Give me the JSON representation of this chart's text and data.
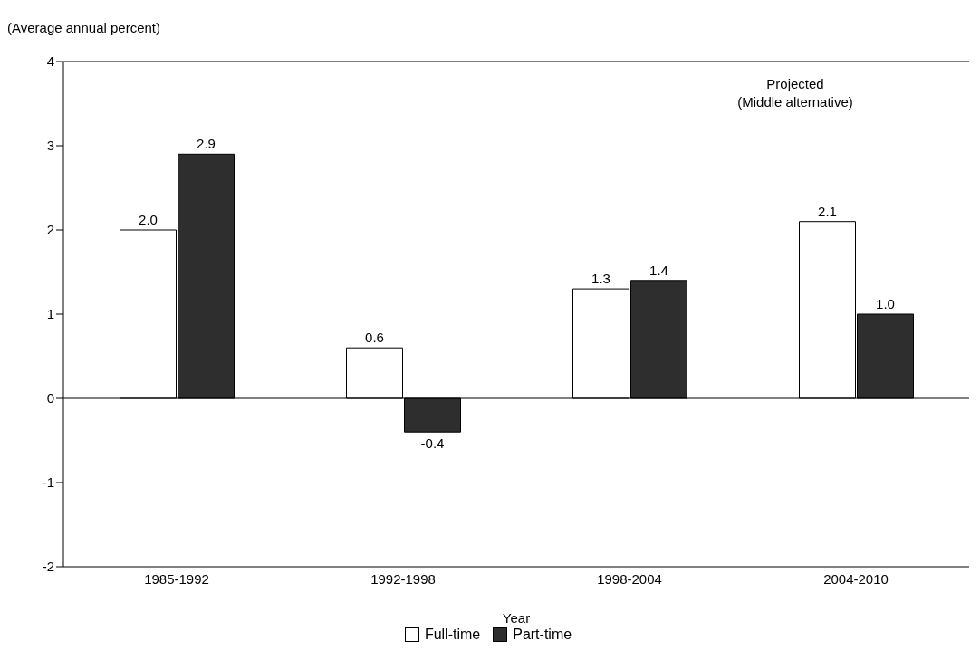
{
  "chart_data": {
    "type": "bar",
    "ylabel": "(Average annual percent)",
    "xlabel": "Year",
    "categories": [
      "1985-1992",
      "1992-1998",
      "1998-2004",
      "2004-2010"
    ],
    "series": [
      {
        "name": "Full-time",
        "color": "#ffffff",
        "values": [
          2.0,
          0.6,
          1.3,
          2.1
        ],
        "value_labels": [
          "2.0",
          "0.6",
          "1.3",
          "2.1"
        ]
      },
      {
        "name": "Part-time",
        "color": "#2e2e2e",
        "values": [
          2.9,
          -0.4,
          1.4,
          1.0
        ],
        "value_labels": [
          "2.9",
          "-0.4",
          "1.4",
          "1.0"
        ]
      }
    ],
    "ylim": [
      -2,
      4
    ],
    "yticks": [
      -2,
      -1,
      0,
      1,
      2,
      3,
      4
    ],
    "grid": false,
    "legend": "bottom",
    "ref_lines": [
      {
        "axis": "y",
        "value": 0
      }
    ],
    "annotations": [
      "Projected",
      "(Middle alternative)"
    ]
  }
}
